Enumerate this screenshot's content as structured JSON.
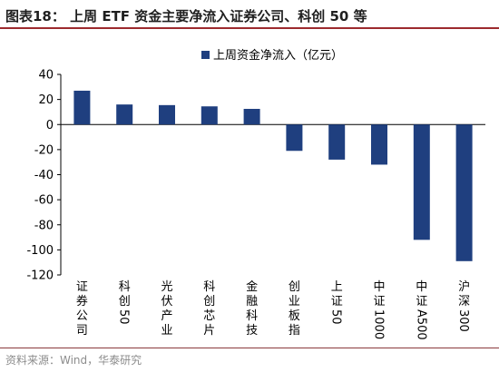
{
  "figure": {
    "title": "图表18：  上周 ETF 资金主要净流入证券公司、科创 50 等",
    "source": "资料来源：Wind，华泰研究"
  },
  "colors": {
    "bar": "#1f3f7f",
    "accent_rule": "#9c2a2e"
  },
  "chart_data": {
    "type": "bar",
    "categories": [
      "证券公司",
      "科创50",
      "光伏产业",
      "科创芯片",
      "金融科技",
      "创业板指",
      "上证50",
      "中证1000",
      "中证A500",
      "沪深300"
    ],
    "series": [
      {
        "name": "上周资金净流入（亿元）",
        "values": [
          27,
          16,
          15.5,
          14.5,
          12.5,
          -21,
          -28,
          -32,
          -92,
          -109
        ]
      }
    ],
    "ylim": [
      -120,
      40
    ],
    "yticks": [
      -120,
      -100,
      -80,
      -60,
      -40,
      -20,
      0,
      20,
      40
    ],
    "grid": false,
    "legend": "top-right"
  }
}
